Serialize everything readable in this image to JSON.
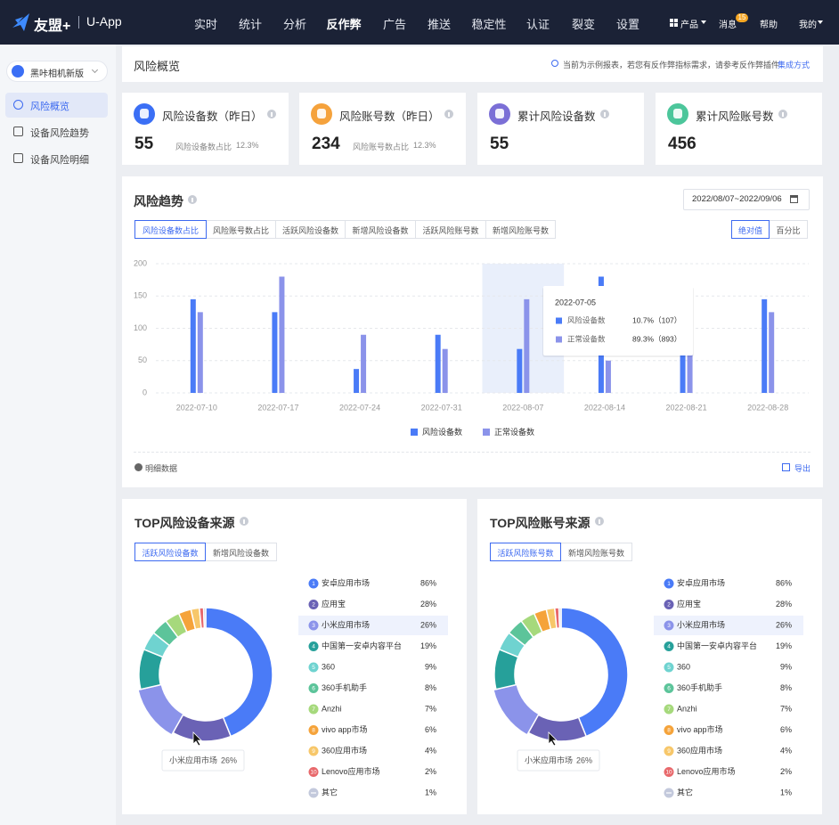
{
  "nav": {
    "logo": "友盟+",
    "product": "U-App",
    "menu": [
      "实时",
      "统计",
      "分析",
      "反作弊",
      "广告",
      "推送",
      "稳定性",
      "认证",
      "裂变",
      "设置"
    ],
    "active_menu": 3,
    "right": [
      "产品",
      "消息",
      "帮助",
      "我的"
    ],
    "badge": 15
  },
  "sidebar": {
    "app": "黑咔相机新版",
    "items": [
      "风险概览",
      "设备风险趋势",
      "设备风险明细"
    ],
    "active": 0
  },
  "header": {
    "title": "风险概览",
    "notice": "当前为示例报表，若您有反作弊指标需求，请参考反作弊插件",
    "link": "集成方式"
  },
  "kpis": [
    {
      "label": "风险设备数（昨日）",
      "value": 55,
      "sub_label": "风险设备数占比",
      "sub_value": "12.3%",
      "color": "#3b6ff5"
    },
    {
      "label": "风险账号数（昨日）",
      "value": 234,
      "sub_label": "风险账号数占比",
      "sub_value": "12.3%",
      "color": "#f5a23c"
    },
    {
      "label": "累计风险设备数",
      "value": 55,
      "color": "#7b6fd6"
    },
    {
      "label": "累计风险账号数",
      "value": 456,
      "color": "#4cc69b"
    }
  ],
  "chart_data": [
    {
      "type": "bar",
      "title": "风险趋势",
      "date_range": "2022/08/07~2022/09/06",
      "tabs": [
        "风险设备数占比",
        "风险账号数占比",
        "活跃风险设备数",
        "新增风险设备数",
        "活跃风险账号数",
        "新增风险账号数"
      ],
      "active_tab": 0,
      "modes": [
        "绝对值",
        "百分比"
      ],
      "active_mode": 0,
      "categories": [
        "2022-07-10",
        "2022-07-17",
        "2022-07-24",
        "2022-07-31",
        "2022-08-07",
        "2022-08-14",
        "2022-08-21",
        "2022-08-28"
      ],
      "series": [
        {
          "name": "风险设备数",
          "color": "#4a7bf7",
          "values": [
            145,
            125,
            37,
            90,
            68,
            180,
            60,
            145
          ]
        },
        {
          "name": "正常设备数",
          "color": "#8b93ea",
          "values": [
            125,
            180,
            90,
            68,
            145,
            50,
            60,
            125
          ]
        }
      ],
      "ylim": [
        0,
        200
      ],
      "yticks": [
        0,
        50,
        100,
        150,
        200
      ],
      "grid": true,
      "hover_index": 4,
      "tooltip": {
        "title": "2022-07-05",
        "values": [
          "10.7%（107）",
          "89.3%（893）"
        ]
      },
      "footer": {
        "detail": "明细数据",
        "export": "导出"
      }
    },
    {
      "type": "donut",
      "title": "TOP风险设备来源",
      "tabs": [
        "活跃风险设备数",
        "新增风险设备数"
      ],
      "active_tab": 0,
      "ranks": [
        1,
        2,
        3,
        4,
        5,
        6,
        7,
        8,
        9,
        10,
        null
      ],
      "categories": [
        "安卓应用市场",
        "应用宝",
        "小米应用市场",
        "中国第一安卓内容平台",
        "360",
        "360手机助手",
        "Anzhi",
        "vivo app市场",
        "360应用市场",
        "Lenovo应用市场",
        "其它"
      ],
      "values": [
        86,
        28,
        26,
        19,
        9,
        8,
        7,
        6,
        4,
        2,
        1
      ],
      "value_labels": [
        "86%",
        "28%",
        "26%",
        "19%",
        "9%",
        "8%",
        "7%",
        "6%",
        "4%",
        "2%",
        "1%"
      ],
      "colors": [
        "#4a7bf7",
        "#6a62b5",
        "#8b93ea",
        "#26a09a",
        "#6fd3d0",
        "#5cc49a",
        "#a6d97c",
        "#f5a33a",
        "#f7c76a",
        "#e8686b",
        "#c3c9dc"
      ],
      "hover_index": 2
    },
    {
      "type": "donut",
      "title": "TOP风险账号来源",
      "tabs": [
        "活跃风险账号数",
        "新增风险账号数"
      ],
      "active_tab": 0,
      "ranks": [
        1,
        2,
        3,
        4,
        5,
        6,
        7,
        8,
        9,
        10,
        null
      ],
      "categories": [
        "安卓应用市场",
        "应用宝",
        "小米应用市场",
        "中国第一安卓内容平台",
        "360",
        "360手机助手",
        "Anzhi",
        "vivo app市场",
        "360应用市场",
        "Lenovo应用市场",
        "其它"
      ],
      "values": [
        86,
        28,
        26,
        19,
        9,
        8,
        7,
        6,
        4,
        2,
        1
      ],
      "value_labels": [
        "86%",
        "28%",
        "26%",
        "19%",
        "9%",
        "8%",
        "7%",
        "6%",
        "4%",
        "2%",
        "1%"
      ],
      "colors": [
        "#4a7bf7",
        "#6a62b5",
        "#8b93ea",
        "#26a09a",
        "#6fd3d0",
        "#5cc49a",
        "#a6d97c",
        "#f5a33a",
        "#f7c76a",
        "#e8686b",
        "#c3c9dc"
      ],
      "hover_index": 2
    }
  ]
}
